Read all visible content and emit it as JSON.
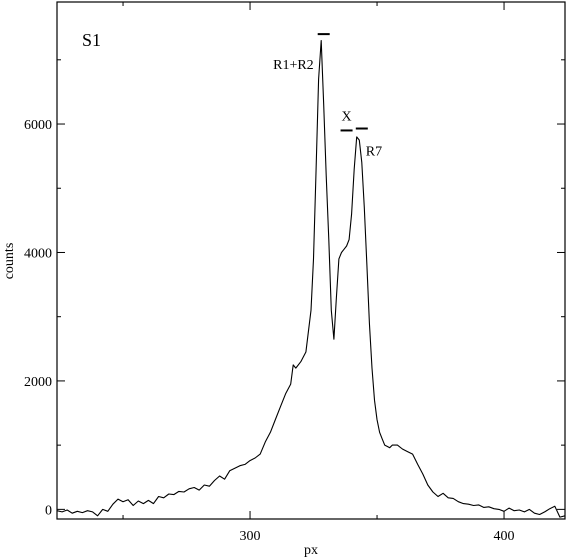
{
  "chart_data": {
    "type": "line",
    "title": "",
    "panel_label": "S1",
    "xlabel": "px",
    "ylabel": "counts",
    "xlim": [
      224,
      424
    ],
    "ylim": [
      -150,
      7900
    ],
    "x_ticks_major": [
      300,
      400
    ],
    "x_ticks_minor": [
      250,
      350
    ],
    "y_ticks_major": [
      0,
      2000,
      4000,
      6000
    ],
    "y_ticks_minor": [
      1000,
      3000,
      5000,
      7000
    ],
    "grid": false,
    "legend": "none",
    "line_color": "#000000",
    "series": [
      {
        "x": [
          224,
          226,
          228,
          230,
          232,
          234,
          236,
          238,
          240,
          242,
          244,
          246,
          248,
          250,
          252,
          254,
          256,
          258,
          260,
          262,
          264,
          266,
          268,
          270,
          272,
          274,
          276,
          278,
          280,
          282,
          284,
          286,
          288,
          290,
          292,
          294,
          296,
          298,
          300,
          302,
          304,
          306,
          308,
          310,
          312,
          314,
          316,
          317,
          318,
          320,
          322,
          324,
          325,
          326,
          327,
          328,
          329,
          330,
          331,
          332,
          333,
          334,
          335,
          336,
          337,
          338,
          339,
          340,
          341,
          342,
          343,
          344,
          345,
          346,
          347,
          348,
          349,
          350,
          351,
          352,
          353,
          354,
          355,
          356,
          358,
          360,
          362,
          364,
          366,
          368,
          370,
          372,
          374,
          376,
          378,
          380,
          382,
          384,
          386,
          388,
          390,
          392,
          394,
          396,
          398,
          400,
          402,
          404,
          406,
          408,
          410,
          412,
          414,
          416,
          418,
          420,
          422,
          424
        ],
        "y": [
          -20,
          -40,
          -10,
          -60,
          -30,
          -50,
          -20,
          -40,
          -100,
          0,
          -30,
          80,
          160,
          120,
          150,
          60,
          130,
          90,
          140,
          90,
          200,
          180,
          240,
          230,
          280,
          270,
          320,
          340,
          300,
          380,
          360,
          450,
          520,
          470,
          600,
          640,
          680,
          700,
          760,
          800,
          860,
          1050,
          1200,
          1400,
          1600,
          1800,
          1950,
          2250,
          2200,
          2300,
          2450,
          3100,
          3900,
          5300,
          6700,
          7300,
          6300,
          5200,
          4200,
          3100,
          2650,
          3300,
          3900,
          4000,
          4050,
          4100,
          4200,
          4600,
          5300,
          5800,
          5750,
          5400,
          4700,
          3800,
          2900,
          2200,
          1700,
          1400,
          1200,
          1100,
          1000,
          980,
          960,
          1000,
          1000,
          940,
          900,
          860,
          700,
          550,
          380,
          270,
          200,
          250,
          180,
          170,
          120,
          90,
          80,
          60,
          70,
          30,
          40,
          10,
          0,
          -30,
          20,
          -20,
          -10,
          -40,
          0,
          -60,
          -80,
          -40,
          10,
          50,
          -120,
          -100
        ]
      }
    ],
    "annotations": [
      {
        "label": "R1+R2",
        "x": 329,
        "y": 7400
      },
      {
        "label": "X",
        "x": 338,
        "y": 5900
      },
      {
        "label": "R7",
        "x": 344,
        "y": 5930
      }
    ]
  }
}
